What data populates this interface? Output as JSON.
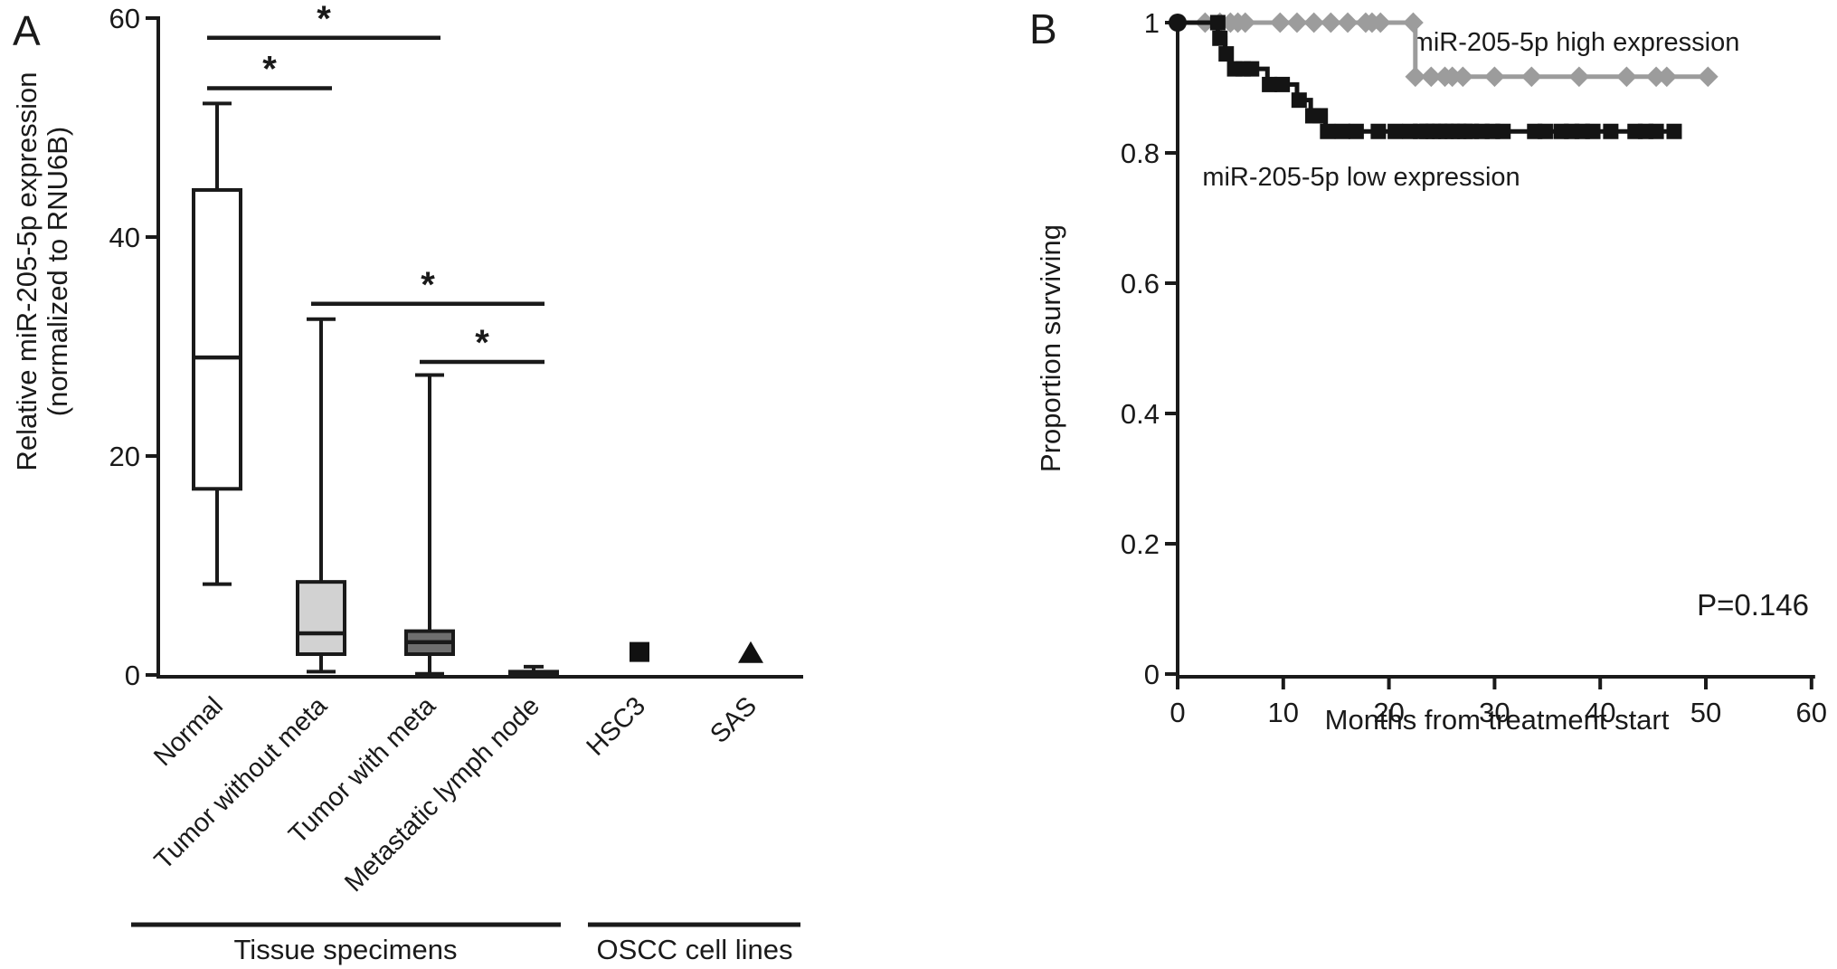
{
  "figure": {
    "panel_a": {
      "label": "A",
      "y_axis_title_line1": "Relative miR-205-5p expression",
      "y_axis_title_line2": "(normalized to RNU6B)",
      "group_tissue_label": "Tissue specimens",
      "group_cell_lines_label": "OSCC cell lines"
    },
    "panel_b": {
      "label": "B",
      "y_axis_title": "Proportion surviving",
      "x_axis_title": "Months from treatment start",
      "legend_high": "miR-205-5p high expression",
      "legend_low": "miR-205-5p low expression",
      "p_value": "P=0.146"
    }
  },
  "chart_data": [
    {
      "type": "box",
      "title": "Relative miR-205-5p expression (normalized to RNU6B)",
      "categories": [
        "Normal",
        "Tumor without meta",
        "Tumor with meta",
        "Metastatic lymph node",
        "HSC3",
        "SAS"
      ],
      "category_groups": [
        {
          "label": "Tissue specimens",
          "span": [
            0,
            3
          ]
        },
        {
          "label": "OSCC cell lines",
          "span": [
            4,
            5
          ]
        }
      ],
      "ylim": [
        0,
        60
      ],
      "yticks": [
        0,
        20,
        40,
        60
      ],
      "grid": false,
      "boxes": [
        {
          "category": "Normal",
          "min": 8.3,
          "q1": 17.0,
          "median": 29.0,
          "q3": 44.3,
          "max": 52.2,
          "fill": "#ffffff"
        },
        {
          "category": "Tumor without meta",
          "min": 0.3,
          "q1": 1.9,
          "median": 3.8,
          "q3": 8.5,
          "max": 32.5,
          "fill": "#d2d2d2"
        },
        {
          "category": "Tumor with meta",
          "min": 0.1,
          "q1": 1.9,
          "median": 3.0,
          "q3": 4.0,
          "max": 27.4,
          "fill": "#6e6e6e"
        },
        {
          "category": "Metastatic lymph node",
          "min": 0.0,
          "q1": 0.05,
          "median": 0.15,
          "q3": 0.3,
          "max": 0.75,
          "fill": "#3c3c3c"
        }
      ],
      "points": [
        {
          "category": "HSC3",
          "value": 2.1,
          "marker": "square",
          "color": "#111111"
        },
        {
          "category": "SAS",
          "value": 2.0,
          "marker": "triangle",
          "color": "#111111"
        }
      ],
      "significance_bars": [
        {
          "from": "Normal",
          "to": "Tumor with meta",
          "y": 58.2,
          "label": "*"
        },
        {
          "from": "Normal",
          "to": "Tumor without meta",
          "y": 53.6,
          "label": "*"
        },
        {
          "from": "Tumor without meta",
          "to": "Metastatic lymph node",
          "y": 33.9,
          "label": "*"
        },
        {
          "from": "Tumor with meta",
          "to": "Metastatic lymph node",
          "y": 28.6,
          "label": "*"
        }
      ]
    },
    {
      "type": "line",
      "subtype": "kaplan-meier",
      "xlabel": "Months from treatment start",
      "ylabel": "Proportion surviving",
      "xlim": [
        0,
        60
      ],
      "ylim": [
        0,
        1
      ],
      "xticks": [
        0,
        10,
        20,
        30,
        40,
        50,
        60
      ],
      "ytick_labels": [
        "0",
        "0.2",
        "0.4",
        "0.6",
        "0.8",
        "1"
      ],
      "ytick_values": [
        0,
        0.2,
        0.4,
        0.6,
        0.8,
        1
      ],
      "legend_position": "inline-annotations",
      "p_value": "P=0.146",
      "series": [
        {
          "name": "miR-205-5p high expression",
          "color": "#9c9c9c",
          "marker": "diamond",
          "steps": [
            [
              0,
              1
            ],
            [
              22.5,
              1
            ],
            [
              22.5,
              0.917
            ],
            [
              50.4,
              0.917
            ]
          ],
          "marks": [
            [
              2.6,
              1
            ],
            [
              4.0,
              1
            ],
            [
              5.0,
              1
            ],
            [
              5.7,
              1
            ],
            [
              6.4,
              1
            ],
            [
              9.7,
              1
            ],
            [
              11.3,
              1
            ],
            [
              12.9,
              1
            ],
            [
              14.5,
              1
            ],
            [
              16.1,
              1
            ],
            [
              17.8,
              1
            ],
            [
              18.4,
              1
            ],
            [
              19.2,
              1
            ],
            [
              22.3,
              1
            ],
            [
              22.5,
              0.917
            ],
            [
              24.0,
              0.917
            ],
            [
              25.3,
              0.917
            ],
            [
              26.0,
              0.917
            ],
            [
              27.0,
              0.917
            ],
            [
              30.0,
              0.917
            ],
            [
              33.5,
              0.917
            ],
            [
              38.0,
              0.917
            ],
            [
              42.5,
              0.917
            ],
            [
              45.3,
              0.917
            ],
            [
              46.3,
              0.917
            ],
            [
              50.2,
              0.917
            ]
          ]
        },
        {
          "name": "miR-205-5p low expression",
          "color": "#141414",
          "marker": "square",
          "start_dot": [
            0,
            1
          ],
          "steps": [
            [
              0,
              1
            ],
            [
              3.8,
              1
            ],
            [
              3.8,
              0.976
            ],
            [
              4.5,
              0.976
            ],
            [
              4.5,
              0.952
            ],
            [
              5.0,
              0.952
            ],
            [
              5.0,
              0.929
            ],
            [
              8.5,
              0.929
            ],
            [
              8.5,
              0.905
            ],
            [
              11.3,
              0.905
            ],
            [
              11.3,
              0.881
            ],
            [
              12.6,
              0.881
            ],
            [
              12.6,
              0.857
            ],
            [
              14.0,
              0.857
            ],
            [
              14.0,
              0.833
            ],
            [
              47.3,
              0.833
            ]
          ],
          "marks": [
            [
              3.8,
              1
            ],
            [
              4.0,
              0.976
            ],
            [
              4.6,
              0.952
            ],
            [
              5.4,
              0.929
            ],
            [
              6.2,
              0.929
            ],
            [
              7.0,
              0.929
            ],
            [
              8.7,
              0.905
            ],
            [
              9.9,
              0.905
            ],
            [
              11.5,
              0.881
            ],
            [
              12.8,
              0.857
            ],
            [
              13.5,
              0.857
            ],
            [
              14.2,
              0.833
            ],
            [
              15.6,
              0.833
            ],
            [
              16.9,
              0.833
            ],
            [
              19.0,
              0.833
            ],
            [
              20.6,
              0.833
            ],
            [
              22.0,
              0.833
            ],
            [
              23.0,
              0.833
            ],
            [
              23.6,
              0.833
            ],
            [
              24.2,
              0.833
            ],
            [
              24.8,
              0.833
            ],
            [
              25.4,
              0.833
            ],
            [
              26.0,
              0.833
            ],
            [
              26.6,
              0.833
            ],
            [
              27.2,
              0.833
            ],
            [
              27.8,
              0.833
            ],
            [
              28.8,
              0.833
            ],
            [
              29.8,
              0.833
            ],
            [
              30.8,
              0.833
            ],
            [
              33.8,
              0.833
            ],
            [
              34.8,
              0.833
            ],
            [
              36.3,
              0.833
            ],
            [
              37.3,
              0.833
            ],
            [
              38.3,
              0.833
            ],
            [
              39.3,
              0.833
            ],
            [
              41.0,
              0.833
            ],
            [
              43.3,
              0.833
            ],
            [
              44.3,
              0.833
            ],
            [
              45.3,
              0.833
            ],
            [
              47.0,
              0.833
            ]
          ]
        }
      ]
    }
  ]
}
